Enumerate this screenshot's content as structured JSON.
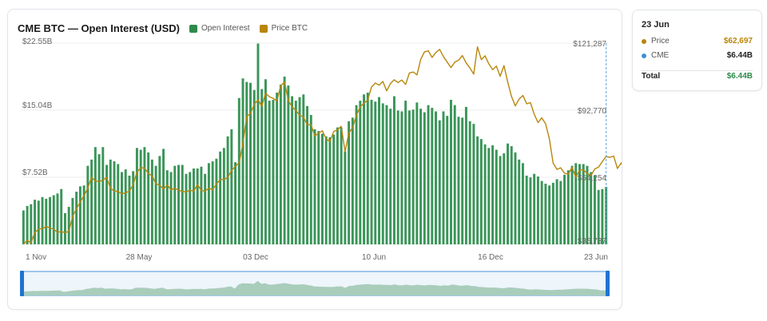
{
  "chart_data": {
    "type": "bar",
    "title": "CME BTC — Open Interest (USD)",
    "xlabel": "",
    "ylabel": "",
    "x_ticks": [
      "1 Nov",
      "28 May",
      "03 Dec",
      "10 Jun",
      "16 Dec",
      "23 Jun"
    ],
    "y_left_ticks": [
      "$22.55B",
      "$15.04B",
      "$7.52B"
    ],
    "y_right_ticks": [
      "$121,287",
      "$92,770",
      "$64,254",
      "$35,737"
    ],
    "y_left_range_billion_usd": [
      0,
      22.55
    ],
    "y_right_range_usd": [
      35737,
      121287
    ],
    "grid": true,
    "legend_position": "top-left",
    "series": [
      {
        "name": "Open Interest",
        "kind": "bar",
        "axis": "left",
        "color": "#2e8b4a",
        "values_billion_usd": [
          3.8,
          4.3,
          4.5,
          5.0,
          4.9,
          5.3,
          5.1,
          5.3,
          5.5,
          5.7,
          6.2,
          3.5,
          4.2,
          5.2,
          5.9,
          6.5,
          6.6,
          8.8,
          9.5,
          10.9,
          10.1,
          10.9,
          8.9,
          9.5,
          9.3,
          9.0,
          8.1,
          8.4,
          7.7,
          8.2,
          10.8,
          10.6,
          10.9,
          10.3,
          9.5,
          8.8,
          9.9,
          10.7,
          8.3,
          8.1,
          8.8,
          8.9,
          8.9,
          7.9,
          8.1,
          8.5,
          8.5,
          8.7,
          7.9,
          9.1,
          9.3,
          9.6,
          10.4,
          10.8,
          12.1,
          12.9,
          9.2,
          16.4,
          18.6,
          18.2,
          18.1,
          17.3,
          22.5,
          17.4,
          18.5,
          16.1,
          16.2,
          17.0,
          17.9,
          18.8,
          17.8,
          16.6,
          16.1,
          16.5,
          16.8,
          15.5,
          14.5,
          12.9,
          12.7,
          12.4,
          12.1,
          12.0,
          12.3,
          13.1,
          13.1,
          10.4,
          13.8,
          14.2,
          15.6,
          16.1,
          16.8,
          17.0,
          16.2,
          16.0,
          16.5,
          15.8,
          15.6,
          15.2,
          16.6,
          15.0,
          14.9,
          16.1,
          15.0,
          15.1,
          15.9,
          15.2,
          14.8,
          15.6,
          15.3,
          14.9,
          13.9,
          14.9,
          14.4,
          16.2,
          15.6,
          14.3,
          14.2,
          15.4,
          13.8,
          13.5,
          12.1,
          11.8,
          11.2,
          10.8,
          11.1,
          10.6,
          9.9,
          10.2,
          11.3,
          11.0,
          10.3,
          9.5,
          9.1,
          7.7,
          7.5,
          7.9,
          7.6,
          7.1,
          6.8,
          6.6,
          6.9,
          7.3,
          7.1,
          7.8,
          8.3,
          8.8,
          9.1,
          9.0,
          9.0,
          8.8,
          8.1,
          7.7,
          6.1,
          6.2,
          6.44
        ]
      },
      {
        "name": "Price BTC",
        "kind": "line",
        "axis": "right",
        "color": "#b8860b",
        "values_usd": [
          35800,
          37500,
          36300,
          40700,
          42300,
          42400,
          43300,
          42700,
          42200,
          40800,
          41200,
          40700,
          41300,
          47600,
          50800,
          53800,
          56400,
          59600,
          64300,
          62600,
          62500,
          63000,
          64200,
          59500,
          58400,
          58200,
          57200,
          57700,
          58300,
          61100,
          66400,
          68300,
          68200,
          65900,
          64800,
          61500,
          60900,
          59200,
          61000,
          58900,
          59600,
          58800,
          58200,
          58000,
          58800,
          58300,
          61200,
          58600,
          58400,
          59600,
          59000,
          61400,
          63300,
          63300,
          64200,
          67100,
          68900,
          70400,
          78500,
          90000,
          91400,
          95300,
          97200,
          94400,
          100000,
          98500,
          97800,
          96700,
          103200,
          104800,
          96800,
          94200,
          92700,
          90600,
          89900,
          86600,
          86600,
          81800,
          83000,
          84000,
          80500,
          79500,
          83700,
          84500,
          85900,
          75200,
          83000,
          85400,
          90600,
          94200,
          95700,
          97100,
          102600,
          104300,
          103400,
          105000,
          101000,
          104100,
          105700,
          104500,
          105600,
          103700,
          108600,
          109000,
          107800,
          114400,
          117600,
          118000,
          115200,
          117300,
          118600,
          115600,
          113200,
          110900,
          113200,
          114000,
          116000,
          112900,
          110700,
          108100,
          119700,
          114300,
          115900,
          112500,
          110000,
          111500,
          107200,
          111700,
          104700,
          98600,
          94600,
          97500,
          99000,
          95500,
          96000,
          91000,
          87500,
          89500,
          87000,
          80600,
          70300,
          67600,
          68300,
          66000,
          65600,
          68500,
          64300,
          67300,
          67400,
          65900,
          65000,
          67800,
          68600,
          70900,
          73100,
          72700,
          73300,
          68000,
          70400,
          65900,
          62600,
          64900,
          62697
        ]
      }
    ]
  },
  "navigator": {
    "description_values": "minimap"
  },
  "tooltip": {
    "date": "23 Jun",
    "price_label": "Price",
    "price_value": "$62,697",
    "price_color": "#b8860b",
    "cme_label": "CME",
    "cme_value": "$6.44B",
    "cme_color": "#3d8fd6",
    "total_label": "Total",
    "total_value": "$6.44B",
    "total_color": "#2e8b4a"
  }
}
